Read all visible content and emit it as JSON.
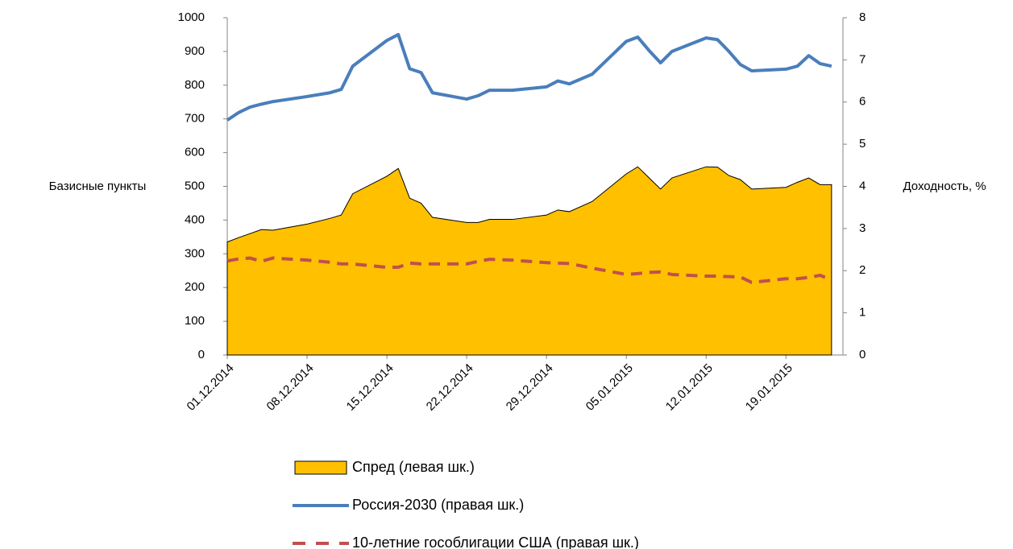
{
  "chart_data": {
    "type": "area-line",
    "x": [
      "01.12.2014",
      "02.12.2014",
      "03.12.2014",
      "04.12.2014",
      "05.12.2014",
      "08.12.2014",
      "10.12.2014",
      "11.12.2014",
      "12.12.2014",
      "15.12.2014",
      "16.12.2014",
      "17.12.2014",
      "18.12.2014",
      "19.12.2014",
      "22.12.2014",
      "23.12.2014",
      "24.12.2014",
      "26.12.2014",
      "29.12.2014",
      "30.12.2014",
      "31.12.2014",
      "02.01.2015",
      "05.01.2015",
      "06.01.2015",
      "07.01.2015",
      "08.01.2015",
      "09.01.2015",
      "12.01.2015",
      "13.01.2015",
      "14.01.2015",
      "15.01.2015",
      "16.01.2015",
      "19.01.2015",
      "20.01.2015",
      "21.01.2015",
      "22.01.2015",
      "23.01.2015"
    ],
    "xlim": [
      "01.12.2014",
      "24.01.2015"
    ],
    "xticks": [
      "01.12.2014",
      "08.12.2014",
      "15.12.2014",
      "22.12.2014",
      "29.12.2014",
      "05.01.2015",
      "12.01.2015",
      "19.01.2015"
    ],
    "ylabel": "Базисные пункты",
    "y2label": "Доходность, %",
    "ylim": [
      0,
      1000
    ],
    "yticks": [
      0,
      100,
      200,
      300,
      400,
      500,
      600,
      700,
      800,
      900,
      1000
    ],
    "y2lim": [
      0,
      8
    ],
    "y2ticks": [
      0,
      1,
      2,
      3,
      4,
      5,
      6,
      7,
      8
    ],
    "series": [
      {
        "name": "Спред (левая шк.)",
        "kind": "area",
        "axis": "y",
        "color": "#FFC000",
        "values": [
          335,
          348,
          360,
          372,
          370,
          388,
          405,
          415,
          478,
          530,
          553,
          465,
          450,
          408,
          393,
          393,
          402,
          402,
          415,
          430,
          425,
          455,
          537,
          558,
          525,
          492,
          525,
          558,
          557,
          532,
          520,
          492,
          497,
          512,
          525,
          505,
          505
        ]
      },
      {
        "name": "Россия-2030 (правая шк.)",
        "kind": "line",
        "axis": "y2",
        "color": "#4A7EBB",
        "values": [
          5.57,
          5.75,
          5.88,
          5.95,
          6.01,
          6.13,
          6.22,
          6.3,
          6.85,
          7.46,
          7.6,
          6.79,
          6.7,
          6.22,
          6.07,
          6.15,
          6.28,
          6.28,
          6.36,
          6.5,
          6.43,
          6.66,
          7.44,
          7.54,
          7.22,
          6.93,
          7.2,
          7.52,
          7.48,
          7.2,
          6.89,
          6.74,
          6.78,
          6.85,
          7.1,
          6.91,
          6.85
        ]
      },
      {
        "name": "10-летние гособлигации США (правая шк.)",
        "kind": "dashed",
        "axis": "y2",
        "color": "#C0504D",
        "values": [
          2.23,
          2.28,
          2.3,
          2.22,
          2.3,
          2.25,
          2.2,
          2.16,
          2.16,
          2.08,
          2.08,
          2.18,
          2.16,
          2.16,
          2.16,
          2.22,
          2.27,
          2.25,
          2.19,
          2.18,
          2.17,
          2.06,
          1.91,
          1.93,
          1.96,
          1.97,
          1.91,
          1.87,
          1.87,
          1.86,
          1.85,
          1.72,
          1.81,
          1.81,
          1.84,
          1.89,
          1.78
        ]
      }
    ]
  }
}
